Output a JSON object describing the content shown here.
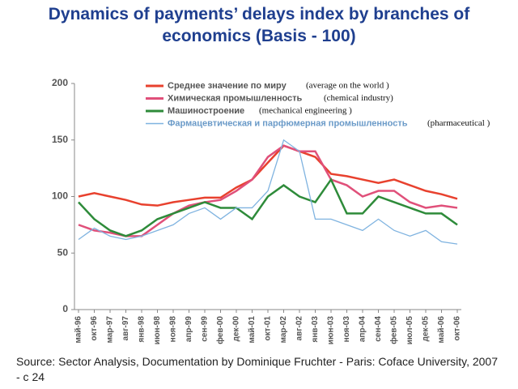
{
  "chart_data": {
    "type": "line",
    "title": "Dynamics of payments’ delays index by branches of economics (Basis - 100)",
    "categories": [
      "май-96",
      "окт-96",
      "мар-97",
      "авг-97",
      "янв-98",
      "июн-98",
      "ноя-98",
      "апр-99",
      "сен-99",
      "фев-00",
      "дек-00",
      "май-01",
      "окт-01",
      "мар-02",
      "авг-02",
      "янв-03",
      "июн-03",
      "ноя-03",
      "апр-04",
      "сен-04",
      "фев-05",
      "июл-05",
      "дек-05",
      "май-06",
      "окт-06"
    ],
    "series": [
      {
        "name": "Среднее значение по миру",
        "color": "#e8412e",
        "values": [
          100,
          103,
          100,
          97,
          93,
          92,
          95,
          97,
          99,
          99,
          108,
          115,
          130,
          145,
          140,
          135,
          120,
          118,
          115,
          112,
          115,
          110,
          105,
          102,
          98
        ]
      },
      {
        "name": "Химическая промышленность",
        "color": "#e0507a",
        "values": [
          75,
          70,
          68,
          65,
          65,
          75,
          85,
          92,
          95,
          97,
          105,
          115,
          135,
          145,
          140,
          140,
          115,
          110,
          100,
          105,
          105,
          95,
          90,
          92,
          90
        ]
      },
      {
        "name": "Машиностроение",
        "color": "#2e8b3a",
        "values": [
          95,
          80,
          70,
          65,
          70,
          80,
          85,
          90,
          95,
          90,
          90,
          80,
          100,
          110,
          100,
          95,
          115,
          85,
          85,
          100,
          95,
          90,
          85,
          85,
          75
        ]
      },
      {
        "name": "Фармацевтическая и парфюмерная промышленность",
        "color": "#7fb3e0",
        "values": [
          62,
          72,
          65,
          62,
          65,
          70,
          75,
          85,
          90,
          80,
          90,
          90,
          105,
          150,
          140,
          80,
          80,
          75,
          70,
          80,
          70,
          65,
          70,
          60,
          58
        ]
      }
    ],
    "annotations": [
      "(average on the world )",
      "(chemical industry)",
      "(mechanical engineering )",
      "(pharmaceutical )"
    ],
    "ylim": [
      0,
      200
    ],
    "yticks": [
      0,
      50,
      100,
      150,
      200
    ],
    "source": "Source: Sector Analysis, Documentation by Dominique Fruchter - Paris: Coface University, 2007 - с 24"
  }
}
